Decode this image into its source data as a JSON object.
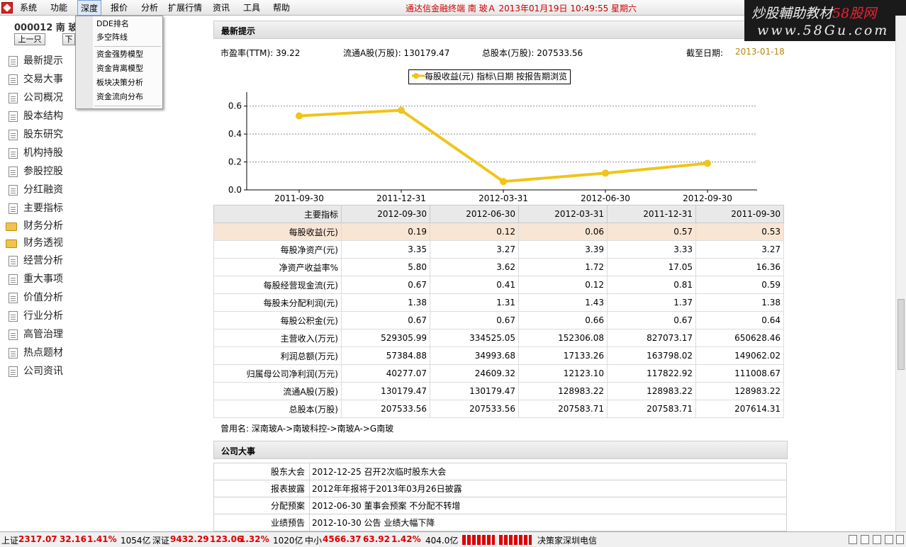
{
  "menubar": {
    "items": [
      "系统",
      "功能",
      "深度",
      "报价",
      "分析",
      "扩展行情",
      "资讯",
      "工具",
      "帮助"
    ],
    "title": "通达信金融终端  南 玻Ａ 2013年01月19日 10:49:55 星期六"
  },
  "watermark": {
    "line1a": "炒股輔助教材",
    "line1b": "58股网",
    "line2": "www.58Gu.com"
  },
  "dropdown": {
    "items": [
      "DDE排名",
      "多空阵线",
      "资金强势模型",
      "资金背离模型",
      "板块决策分析",
      "资金流向分布"
    ]
  },
  "stock": {
    "code_name": "000012 南 玻",
    "prev_btn": "上一只",
    "next_btn": "下"
  },
  "nav": {
    "items": [
      "最新提示",
      "交易大事",
      "公司概况",
      "股本结构",
      "股东研究",
      "机构持股",
      "参股控股",
      "分红融资",
      "主要指标",
      "财务分析",
      "财务透视",
      "经营分析",
      "重大事项",
      "价值分析",
      "行业分析",
      "高管治理",
      "热点题材",
      "公司资讯"
    ]
  },
  "section1": {
    "title": "最新提示"
  },
  "stats": {
    "pe": "市盈率(TTM): 39.22",
    "float": "流通A股(万股): 130179.47",
    "total": "总股本(万股): 207533.56",
    "date_label": "截至日期:",
    "date_value": "2013-01-18"
  },
  "chart_data": {
    "type": "line",
    "legend": "每股收益(元)   指标\\日期  按报告期浏览",
    "x": [
      "2011-09-30",
      "2011-12-31",
      "2012-03-31",
      "2012-06-30",
      "2012-09-30"
    ],
    "series": [
      {
        "name": "每股收益(元)",
        "values": [
          0.53,
          0.57,
          0.06,
          0.12,
          0.19
        ]
      }
    ],
    "ylim": [
      0,
      0.7
    ],
    "yticks": [
      "0.0",
      "0.2",
      "0.4",
      "0.6"
    ],
    "grid": true,
    "color": "#f0c419"
  },
  "table": {
    "headers": [
      "主要指标",
      "2012-09-30",
      "2012-06-30",
      "2012-03-31",
      "2011-12-31",
      "2011-09-30"
    ],
    "rows": [
      [
        "每股收益(元)",
        "0.19",
        "0.12",
        "0.06",
        "0.57",
        "0.53"
      ],
      [
        "每股净资产(元)",
        "3.35",
        "3.27",
        "3.39",
        "3.33",
        "3.27"
      ],
      [
        "净资产收益率%",
        "5.80",
        "3.62",
        "1.72",
        "17.05",
        "16.36"
      ],
      [
        "每股经营现金流(元)",
        "0.67",
        "0.41",
        "0.12",
        "0.81",
        "0.59"
      ],
      [
        "每股未分配利润(元)",
        "1.38",
        "1.31",
        "1.43",
        "1.37",
        "1.38"
      ],
      [
        "每股公积金(元)",
        "0.67",
        "0.67",
        "0.66",
        "0.67",
        "0.64"
      ],
      [
        "主营收入(万元)",
        "529305.99",
        "334525.05",
        "152306.08",
        "827073.17",
        "650628.46"
      ],
      [
        "利润总额(万元)",
        "57384.88",
        "34993.68",
        "17133.26",
        "163798.02",
        "149062.02"
      ],
      [
        "归属母公司净利润(万元)",
        "40277.07",
        "24609.32",
        "12123.10",
        "117822.92",
        "111008.67"
      ],
      [
        "流通A股(万股)",
        "130179.47",
        "130179.47",
        "128983.22",
        "128983.22",
        "128983.22"
      ],
      [
        "总股本(万股)",
        "207533.56",
        "207533.56",
        "207583.71",
        "207583.71",
        "207614.31"
      ]
    ]
  },
  "old_name": "曾用名: 深南玻A->南玻科控->南玻A->G南玻",
  "section2": {
    "title": "公司大事"
  },
  "events": [
    [
      "股东大会",
      "2012-12-25 召开2次临时股东大会"
    ],
    [
      "报表披露",
      "2012年年报将于2013年03月26日披露"
    ],
    [
      "分配预案",
      "2012-06-30 董事会预案 不分配不转增"
    ],
    [
      "业绩预告",
      "2012-10-30 公告 业绩大幅下降"
    ]
  ],
  "status": {
    "sh_label": "上证",
    "sh_val": "2317.07",
    "sh_chg": "32.16",
    "sh_pct": "1.41%",
    "sh_amt": "1054亿",
    "sz_label": "深证",
    "sz_val": "9432.29",
    "sz_chg": "123.06",
    "sz_pct": "1.32%",
    "sz_amt": "1020亿",
    "zx_label": "中小",
    "zx_val": "4566.37",
    "zx_chg": "63.92",
    "zx_pct": "1.42%",
    "zx_amt": "404.0亿",
    "server": "决策家深圳电信"
  }
}
